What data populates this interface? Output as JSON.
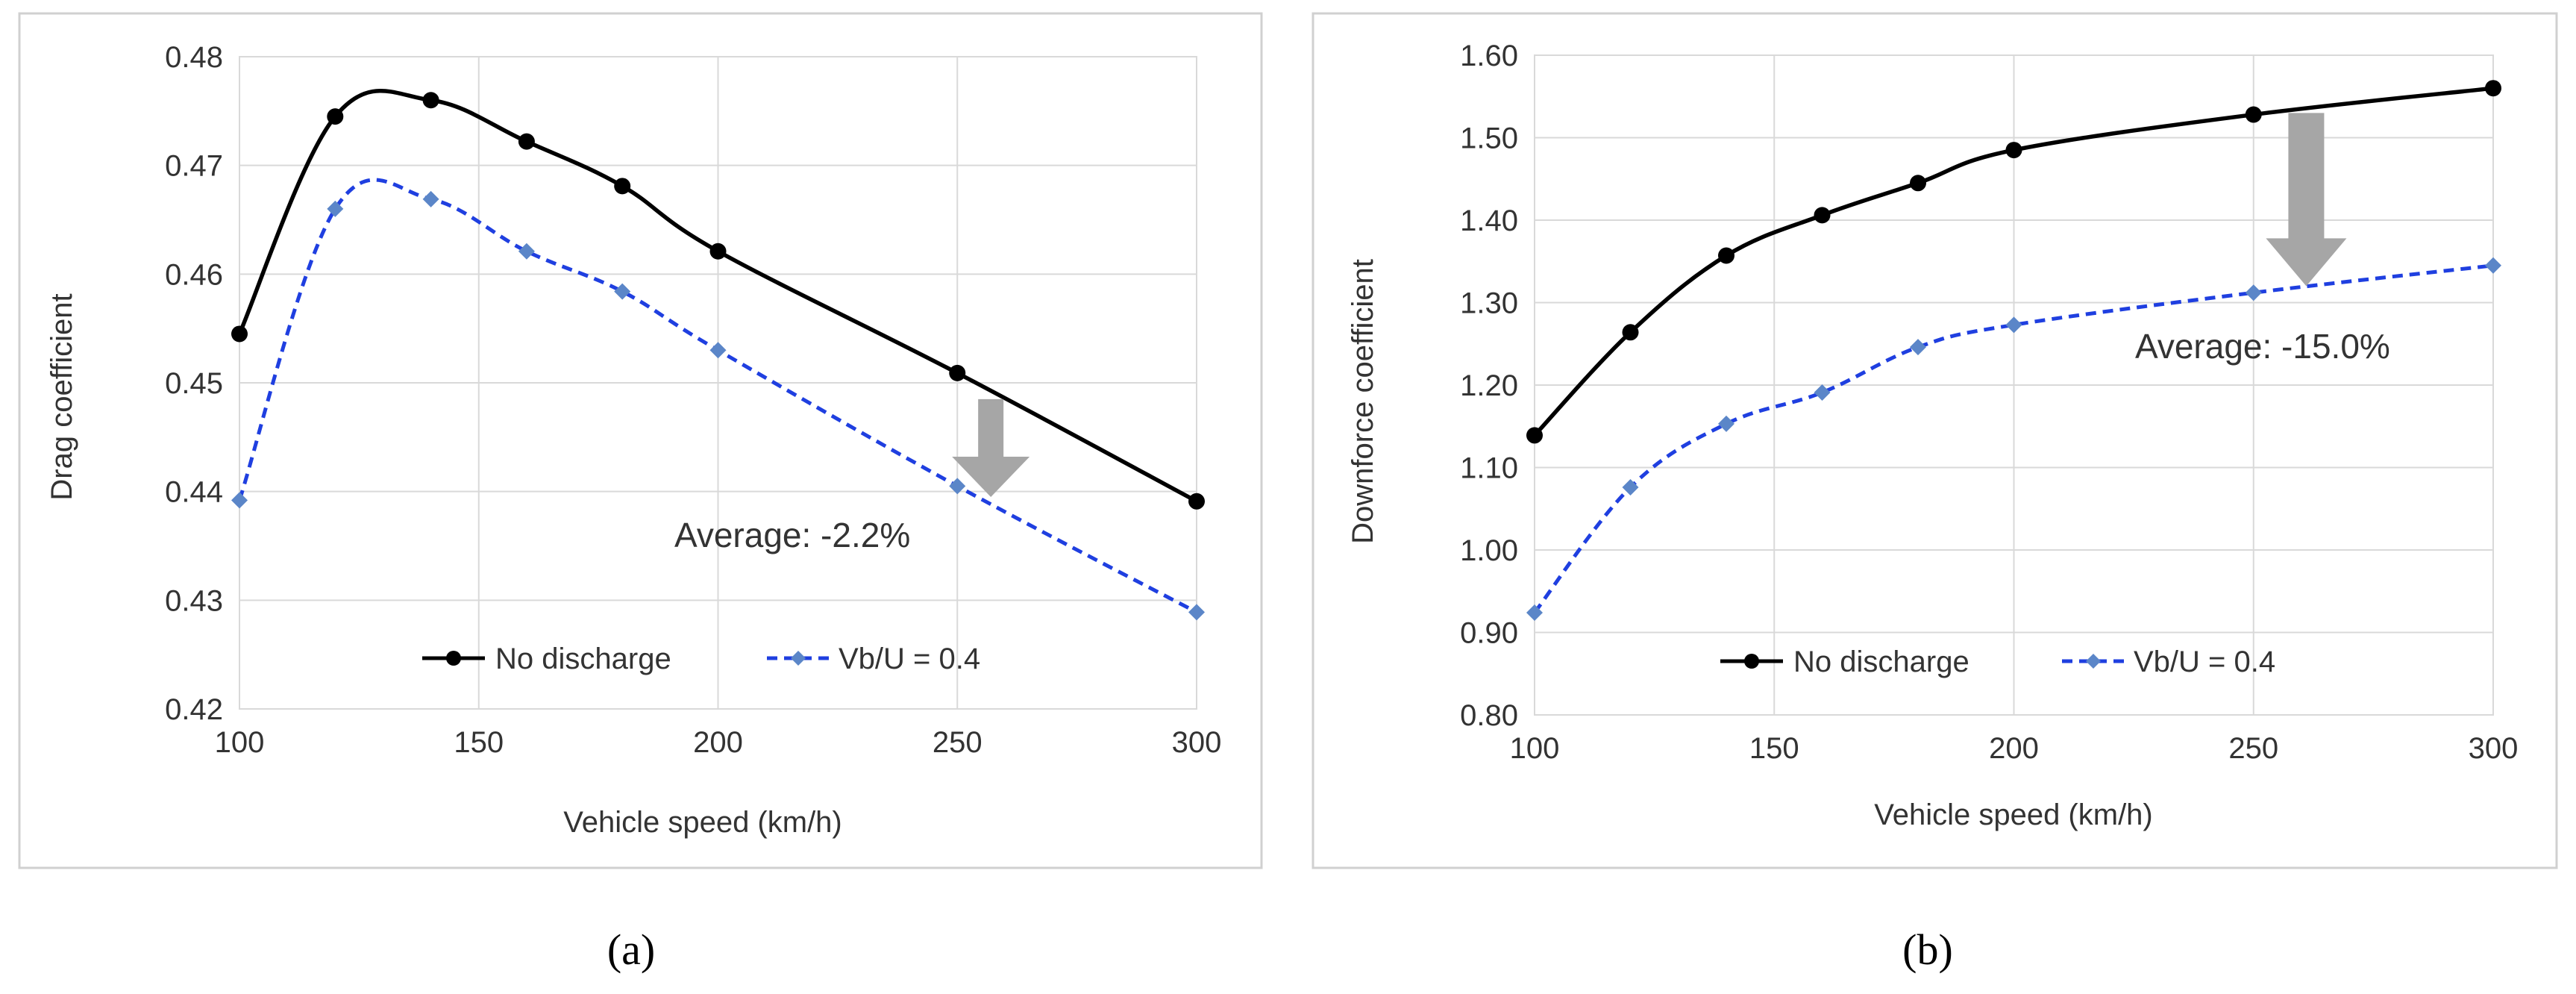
{
  "chart_data": [
    {
      "type": "line",
      "panel": "a",
      "xlabel": "Vehicle speed (km/h)",
      "ylabel": "Drag coefficient",
      "xlim": [
        100,
        300
      ],
      "ylim": [
        0.42,
        0.48
      ],
      "xticks": [
        100,
        150,
        200,
        250,
        300
      ],
      "xtick_labels": [
        "100",
        "150",
        "200",
        "250",
        "300"
      ],
      "yticks": [
        0.42,
        0.43,
        0.44,
        0.45,
        0.46,
        0.47,
        0.48
      ],
      "ytick_labels": [
        "0.42",
        "0.43",
        "0.44",
        "0.45",
        "0.46",
        "0.47",
        "0.48"
      ],
      "grid": true,
      "legend_position": "bottom-center",
      "series": [
        {
          "name": "No discharge",
          "color": "#000000",
          "marker": "circle",
          "style": "solid",
          "x": [
            100,
            120,
            140,
            160,
            180,
            200,
            250,
            300
          ],
          "values": [
            0.4545,
            0.4745,
            0.476,
            0.4722,
            0.4681,
            0.4621,
            0.4509,
            0.4391
          ]
        },
        {
          "name": "Vb/U = 0.4",
          "color": "#1f3fe0",
          "marker_color": "#5b86c8",
          "marker": "diamond",
          "style": "dashed",
          "x": [
            100,
            120,
            140,
            160,
            180,
            200,
            250,
            300
          ],
          "values": [
            0.4392,
            0.466,
            0.4669,
            0.4621,
            0.4584,
            0.453,
            0.4405,
            0.4289
          ]
        }
      ],
      "annotation": {
        "text": "Average:  -2.2%",
        "arrow_x": 257,
        "arrow_from": 0.4485,
        "arrow_to": 0.4395
      },
      "caption": "(a)"
    },
    {
      "type": "line",
      "panel": "b",
      "xlabel": "Vehicle speed (km/h)",
      "ylabel": "Downforce coefficient",
      "xlim": [
        100,
        300
      ],
      "ylim": [
        0.8,
        1.6
      ],
      "xticks": [
        100,
        150,
        200,
        250,
        300
      ],
      "xtick_labels": [
        "100",
        "150",
        "200",
        "250",
        "300"
      ],
      "yticks": [
        0.8,
        0.9,
        1.0,
        1.1,
        1.2,
        1.3,
        1.4,
        1.5,
        1.6
      ],
      "ytick_labels": [
        "0.80",
        "0.90",
        "1.00",
        "1.10",
        "1.20",
        "1.30",
        "1.40",
        "1.50",
        "1.60"
      ],
      "grid": true,
      "legend_position": "bottom-center",
      "series": [
        {
          "name": "No discharge",
          "color": "#000000",
          "marker": "circle",
          "style": "solid",
          "x": [
            100,
            120,
            140,
            160,
            180,
            200,
            250,
            300
          ],
          "values": [
            1.139,
            1.264,
            1.357,
            1.406,
            1.445,
            1.485,
            1.528,
            1.56
          ]
        },
        {
          "name": "Vb/U = 0.4",
          "color": "#1f3fe0",
          "marker_color": "#5b86c8",
          "marker": "diamond",
          "style": "dashed",
          "x": [
            100,
            120,
            140,
            160,
            180,
            200,
            250,
            300
          ],
          "values": [
            0.924,
            1.076,
            1.153,
            1.191,
            1.246,
            1.273,
            1.312,
            1.345
          ]
        }
      ],
      "annotation": {
        "text": "Average:  -15.0%",
        "arrow_x": 261,
        "arrow_from": 1.53,
        "arrow_to": 1.32
      },
      "caption": "(b)"
    }
  ]
}
